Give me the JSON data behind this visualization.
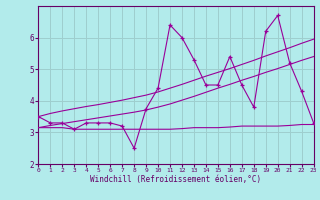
{
  "xlabel": "Windchill (Refroidissement éolien,°C)",
  "background_color": "#b2ebeb",
  "grid_color": "#9ecece",
  "line_color": "#990099",
  "x_values": [
    0,
    1,
    2,
    3,
    4,
    5,
    6,
    7,
    8,
    9,
    10,
    11,
    12,
    13,
    14,
    15,
    16,
    17,
    18,
    19,
    20,
    21,
    22,
    23
  ],
  "main_line": [
    3.5,
    3.3,
    3.3,
    3.1,
    3.3,
    3.3,
    3.3,
    3.2,
    2.5,
    3.75,
    4.4,
    6.4,
    6.0,
    5.3,
    4.5,
    4.5,
    5.4,
    4.5,
    3.8,
    6.2,
    6.7,
    5.2,
    4.3,
    3.3
  ],
  "flat_line": [
    3.15,
    3.15,
    3.15,
    3.1,
    3.1,
    3.1,
    3.1,
    3.1,
    3.1,
    3.1,
    3.1,
    3.1,
    3.12,
    3.15,
    3.15,
    3.15,
    3.17,
    3.2,
    3.2,
    3.2,
    3.2,
    3.22,
    3.25,
    3.25
  ],
  "trend_upper": [
    3.5,
    3.6,
    3.68,
    3.75,
    3.82,
    3.88,
    3.95,
    4.02,
    4.1,
    4.18,
    4.28,
    4.4,
    4.52,
    4.65,
    4.78,
    4.9,
    5.02,
    5.15,
    5.28,
    5.42,
    5.55,
    5.68,
    5.82,
    5.95
  ],
  "trend_lower": [
    3.15,
    3.22,
    3.28,
    3.34,
    3.4,
    3.46,
    3.52,
    3.58,
    3.64,
    3.71,
    3.8,
    3.9,
    4.02,
    4.14,
    4.27,
    4.4,
    4.52,
    4.65,
    4.77,
    4.9,
    5.02,
    5.15,
    5.28,
    5.4
  ],
  "ylim": [
    2.0,
    7.0
  ],
  "xlim": [
    0,
    23
  ],
  "yticks": [
    2,
    3,
    4,
    5,
    6
  ],
  "xticks": [
    0,
    1,
    2,
    3,
    4,
    5,
    6,
    7,
    8,
    9,
    10,
    11,
    12,
    13,
    14,
    15,
    16,
    17,
    18,
    19,
    20,
    21,
    22,
    23
  ]
}
